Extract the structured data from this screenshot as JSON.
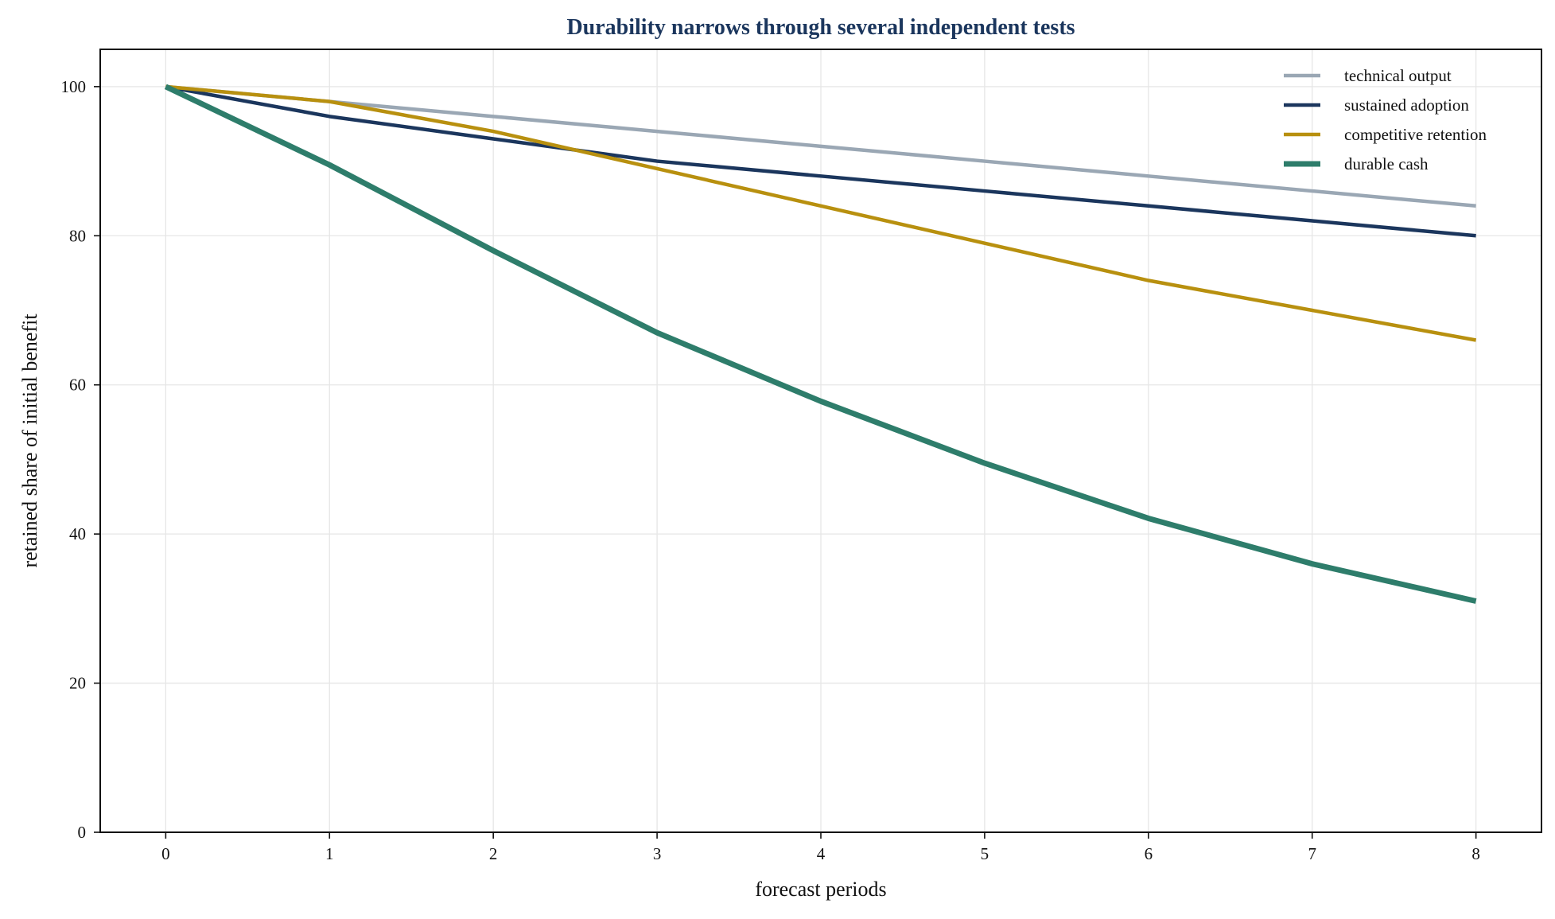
{
  "chart_data": {
    "type": "line",
    "title": "Durability narrows through several independent tests",
    "xlabel": "forecast periods",
    "ylabel": "retained share of initial benefit",
    "x": [
      0,
      1,
      2,
      3,
      4,
      5,
      6,
      7,
      8
    ],
    "xlim": [
      -0.4,
      8.4
    ],
    "ylim": [
      0,
      105
    ],
    "xticks": [
      0,
      1,
      2,
      3,
      4,
      5,
      6,
      7,
      8
    ],
    "yticks": [
      0,
      20,
      40,
      60,
      80,
      100
    ],
    "grid": true,
    "legend_position": "top-right",
    "series": [
      {
        "name": "technical output",
        "color": "#9aa7b4",
        "values": [
          100,
          98,
          96,
          94,
          92,
          90,
          88,
          86,
          84
        ]
      },
      {
        "name": "sustained adoption",
        "color": "#1b365d",
        "values": [
          100,
          96,
          93,
          90,
          88,
          86,
          84,
          82,
          80
        ]
      },
      {
        "name": "competitive retention",
        "color": "#b8900f",
        "values": [
          100,
          98,
          94,
          89,
          84,
          79,
          74,
          70,
          66
        ]
      },
      {
        "name": "durable cash",
        "color": "#2e7d6b",
        "values": [
          100,
          89.5,
          78,
          67,
          57.8,
          49.5,
          42.1,
          36,
          31
        ]
      }
    ]
  }
}
